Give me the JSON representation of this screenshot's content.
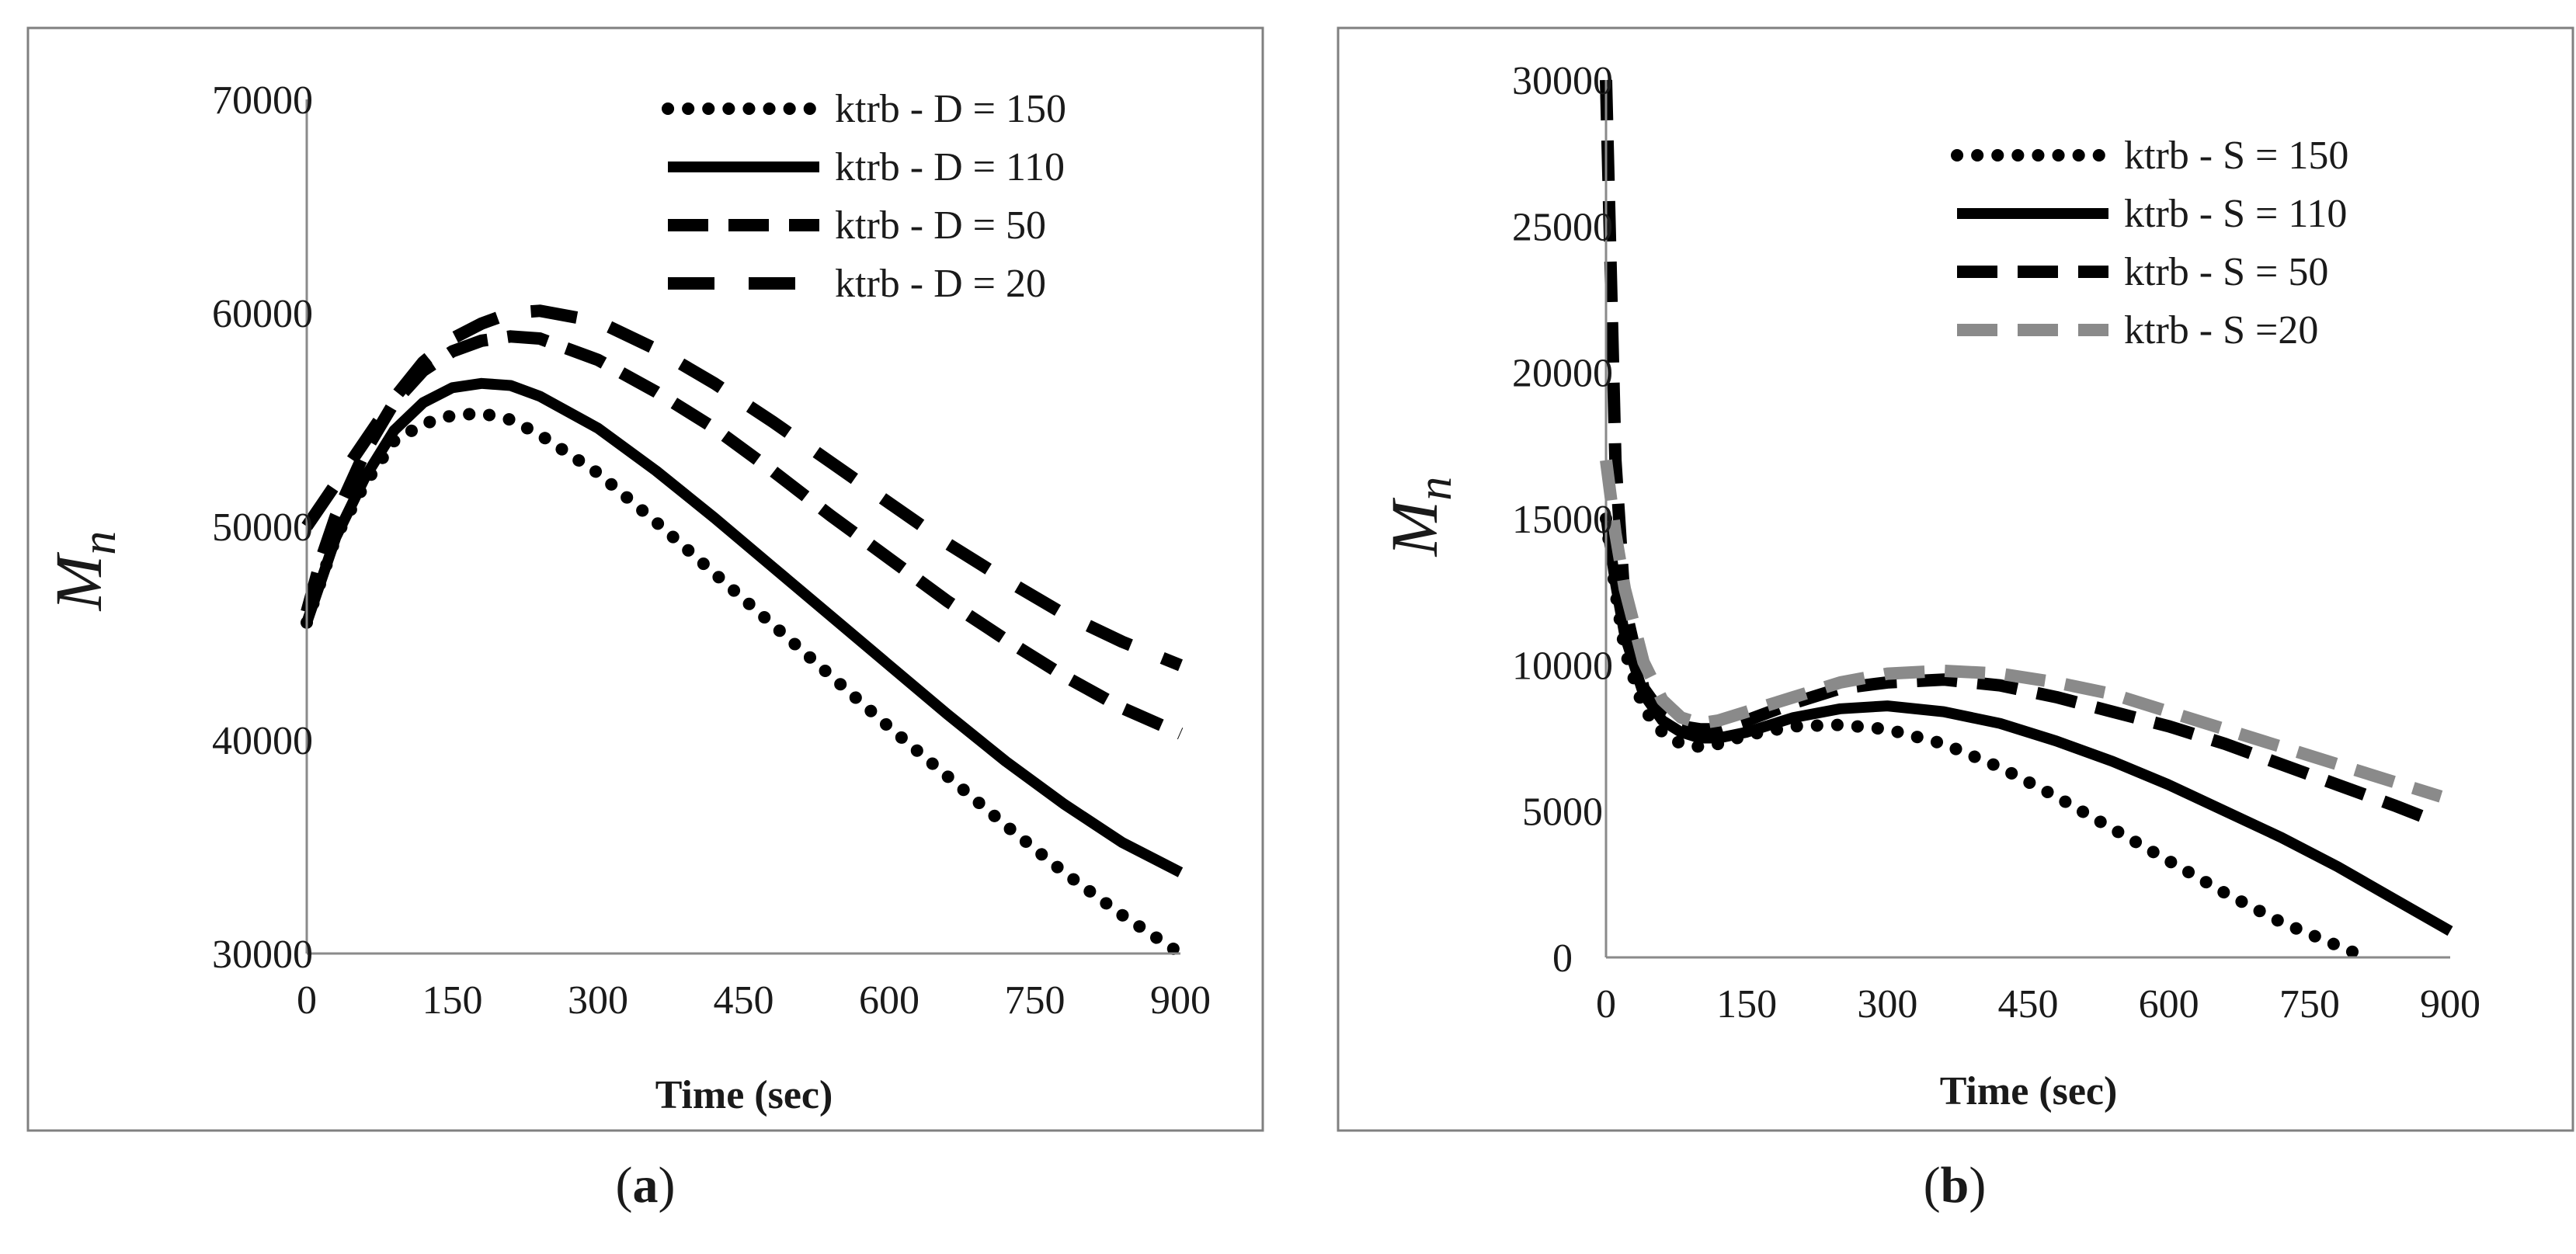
{
  "chart_data": [
    {
      "type": "line",
      "panel_label": "a",
      "xlabel": "Time (sec)",
      "ylabel": "M",
      "ylabel_subscript": "n",
      "x_ticks": [
        "0",
        "150",
        "300",
        "450",
        "600",
        "750",
        "900"
      ],
      "y_ticks": [
        "30000",
        "40000",
        "50000",
        "60000",
        "70000"
      ],
      "xlim": [
        0,
        900
      ],
      "ylim": [
        30000,
        70000
      ],
      "legend_position": "top-right",
      "series": [
        {
          "name": "ktrb - D = 150",
          "style": "dotted",
          "color": "#000000",
          "x": [
            0,
            15,
            30,
            60,
            90,
            120,
            150,
            180,
            210,
            240,
            300,
            360,
            420,
            480,
            540,
            600,
            660,
            720,
            780,
            840,
            900
          ],
          "y": [
            45500,
            47500,
            49500,
            52000,
            54000,
            54800,
            55200,
            55300,
            55000,
            54300,
            52500,
            50200,
            47800,
            45400,
            43000,
            40600,
            38300,
            36000,
            33800,
            31800,
            30000
          ]
        },
        {
          "name": "ktrb - D = 110",
          "style": "solid",
          "color": "#000000",
          "x": [
            0,
            15,
            30,
            60,
            90,
            120,
            150,
            180,
            210,
            240,
            300,
            360,
            420,
            480,
            540,
            600,
            660,
            720,
            780,
            840,
            900
          ],
          "y": [
            45500,
            47500,
            49500,
            52300,
            54500,
            55800,
            56500,
            56700,
            56600,
            56100,
            54600,
            52600,
            50400,
            48100,
            45800,
            43500,
            41200,
            39000,
            37000,
            35200,
            33800
          ]
        },
        {
          "name": "ktrb - D = 50",
          "style": "dashed",
          "color": "#000000",
          "x": [
            0,
            15,
            30,
            60,
            90,
            120,
            150,
            180,
            210,
            240,
            300,
            360,
            420,
            480,
            540,
            600,
            660,
            720,
            780,
            840,
            900
          ],
          "y": [
            46000,
            48500,
            50500,
            53500,
            55800,
            57300,
            58200,
            58700,
            58900,
            58800,
            57800,
            56300,
            54600,
            52600,
            50500,
            48500,
            46500,
            44700,
            43000,
            41500,
            40300
          ]
        },
        {
          "name": "ktrb - D = 20",
          "style": "long-dashed",
          "color": "#000000",
          "x": [
            0,
            15,
            30,
            60,
            90,
            120,
            150,
            180,
            210,
            240,
            300,
            360,
            420,
            480,
            540,
            600,
            660,
            720,
            780,
            840,
            900
          ],
          "y": [
            50000,
            51000,
            52000,
            54000,
            56000,
            57700,
            58800,
            59500,
            60000,
            60100,
            59600,
            58300,
            56700,
            54900,
            53000,
            51100,
            49200,
            47500,
            45900,
            44600,
            43500
          ]
        }
      ]
    },
    {
      "type": "line",
      "panel_label": "b",
      "xlabel": "Time (sec)",
      "ylabel": "M",
      "ylabel_subscript": "n",
      "x_ticks": [
        "0",
        "150",
        "300",
        "450",
        "600",
        "750",
        "900"
      ],
      "y_ticks": [
        "0",
        "5000",
        "10000",
        "15000",
        "20000",
        "25000",
        "30000"
      ],
      "xlim": [
        0,
        900
      ],
      "ylim": [
        0,
        30000
      ],
      "legend_position": "top-right",
      "series": [
        {
          "name": "ktrb - S = 150",
          "style": "dotted",
          "color": "#000000",
          "x": [
            0,
            10,
            20,
            40,
            60,
            80,
            100,
            120,
            150,
            200,
            250,
            300,
            360,
            420,
            480,
            540,
            600,
            660,
            720,
            780,
            810
          ],
          "y": [
            15000,
            12500,
            10500,
            8500,
            7700,
            7300,
            7200,
            7300,
            7600,
            7900,
            7950,
            7800,
            7300,
            6500,
            5500,
            4400,
            3300,
            2200,
            1200,
            400,
            0
          ]
        },
        {
          "name": "ktrb - S = 110",
          "style": "solid",
          "color": "#000000",
          "x": [
            0,
            10,
            20,
            40,
            60,
            80,
            100,
            120,
            150,
            200,
            250,
            300,
            360,
            420,
            480,
            540,
            600,
            660,
            720,
            780,
            840,
            900
          ],
          "y": [
            15000,
            12800,
            11000,
            9000,
            8100,
            7700,
            7500,
            7500,
            7700,
            8200,
            8500,
            8600,
            8400,
            8000,
            7400,
            6700,
            5900,
            5000,
            4100,
            3100,
            2000,
            900
          ]
        },
        {
          "name": "ktrb - S = 50",
          "style": "dashed",
          "color": "#000000",
          "x": [
            0,
            10,
            20,
            40,
            60,
            80,
            100,
            120,
            150,
            200,
            250,
            300,
            360,
            420,
            480,
            540,
            600,
            660,
            720,
            780,
            840,
            880
          ],
          "y": [
            30000,
            17000,
            12000,
            9200,
            8300,
            7900,
            7800,
            7800,
            8100,
            8700,
            9200,
            9400,
            9500,
            9300,
            8900,
            8400,
            7900,
            7300,
            6600,
            5900,
            5200,
            4700
          ]
        },
        {
          "name": "ktrb - S =20",
          "style": "dashed",
          "color": "#8a8a8a",
          "x": [
            0,
            10,
            20,
            40,
            60,
            80,
            100,
            120,
            150,
            200,
            250,
            300,
            360,
            420,
            480,
            540,
            600,
            660,
            720,
            780,
            840,
            890
          ],
          "y": [
            17000,
            14500,
            12600,
            10100,
            8800,
            8200,
            8000,
            8100,
            8400,
            8900,
            9400,
            9700,
            9800,
            9700,
            9400,
            9000,
            8400,
            7800,
            7200,
            6600,
            6000,
            5500
          ]
        }
      ]
    }
  ]
}
